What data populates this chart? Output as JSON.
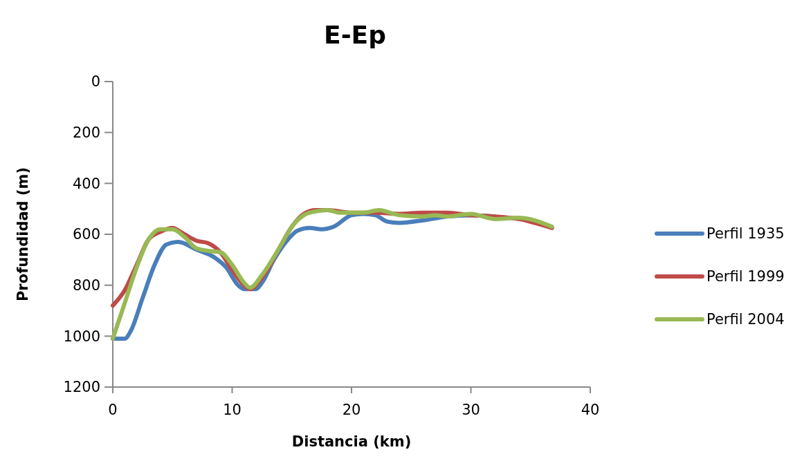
{
  "chart_data": {
    "type": "line",
    "title": "E-Ep",
    "xlabel": "Distancia (km)",
    "ylabel": "Profundidad (m)",
    "xlim": [
      0,
      40
    ],
    "xticks": [
      0,
      10,
      20,
      30,
      40
    ],
    "ylim": [
      1200,
      0
    ],
    "yticks": [
      0,
      200,
      400,
      600,
      800,
      1000,
      1200
    ],
    "legend": "right",
    "marker": "none",
    "line_style": "solid",
    "grid": false,
    "series": [
      {
        "name": "Perfil 1935",
        "color": "#4a7ebb",
        "x": [
          0,
          1,
          1.5,
          2.5,
          3.5,
          4.5,
          5.5,
          7,
          8.5,
          9.5,
          10.5,
          11,
          12,
          12.5,
          13.5,
          14.5,
          15.5,
          16.5,
          17.5,
          18.5,
          20,
          21,
          22,
          23,
          24,
          26,
          28,
          30,
          32
        ],
        "values": [
          1010,
          1010,
          980,
          850,
          720,
          640,
          630,
          660,
          690,
          730,
          800,
          815,
          815,
          790,
          700,
          630,
          585,
          575,
          580,
          570,
          525,
          520,
          525,
          550,
          555,
          545,
          530,
          525,
          530
        ]
      },
      {
        "name": "Perfil 1999",
        "color": "#be4b48",
        "x": [
          0,
          1,
          2,
          3,
          4,
          5,
          6,
          7,
          8,
          9,
          10,
          11,
          11.5,
          12.5,
          14,
          15,
          16,
          17,
          18,
          20,
          22,
          24,
          26,
          28,
          30,
          32,
          34,
          36.8
        ],
        "values": [
          880,
          820,
          720,
          620,
          590,
          575,
          600,
          625,
          635,
          670,
          740,
          800,
          815,
          770,
          650,
          570,
          520,
          505,
          505,
          515,
          515,
          520,
          515,
          515,
          525,
          530,
          540,
          575
        ]
      },
      {
        "name": "Perfil 2004",
        "color": "#98b954",
        "x": [
          0,
          1,
          2,
          3,
          4,
          5,
          6,
          7,
          8,
          9,
          10,
          11,
          11.5,
          12.5,
          14,
          15,
          16,
          17,
          18,
          19,
          20,
          21,
          22.3,
          24,
          26,
          27,
          28,
          30,
          32,
          34,
          36.8
        ],
        "values": [
          1010,
          870,
          730,
          620,
          580,
          580,
          610,
          655,
          665,
          670,
          720,
          790,
          810,
          760,
          650,
          570,
          525,
          510,
          505,
          515,
          515,
          515,
          505,
          525,
          530,
          525,
          530,
          520,
          540,
          535,
          570
        ]
      }
    ]
  }
}
